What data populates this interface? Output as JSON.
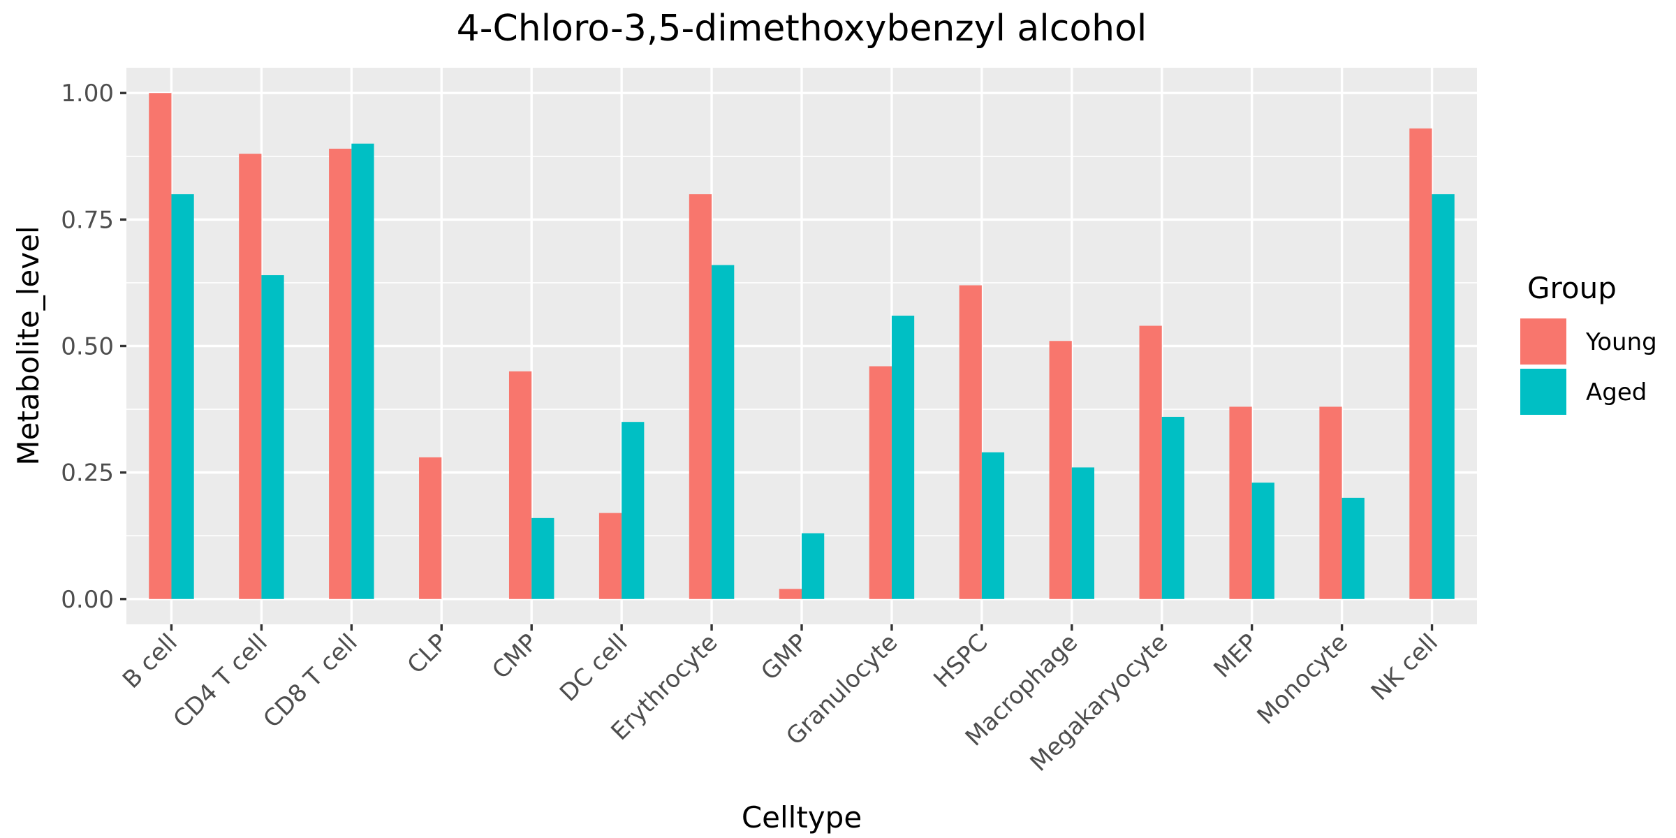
{
  "chart_data": {
    "type": "bar",
    "title": "4-Chloro-3,5-dimethoxybenzyl alcohol",
    "xlabel": "Celltype",
    "ylabel": "Metabolite_level",
    "categories": [
      "B cell",
      "CD4 T cell",
      "CD8 T cell",
      "CLP",
      "CMP",
      "DC cell",
      "Erythrocyte",
      "GMP",
      "Granulocyte",
      "HSPC",
      "Macrophage",
      "Megakaryocyte",
      "MEP",
      "Monocyte",
      "NK cell"
    ],
    "series": [
      {
        "name": "Young",
        "color": "#F8766D",
        "values": [
          1.0,
          0.88,
          0.89,
          0.28,
          0.45,
          0.17,
          0.8,
          0.02,
          0.46,
          0.62,
          0.51,
          0.54,
          0.38,
          0.38,
          0.93
        ]
      },
      {
        "name": "Aged",
        "color": "#00BFC4",
        "values": [
          0.8,
          0.64,
          0.9,
          0.0,
          0.16,
          0.35,
          0.66,
          0.13,
          0.56,
          0.29,
          0.26,
          0.36,
          0.23,
          0.2,
          0.8
        ]
      }
    ],
    "ylim": [
      -0.05,
      1.05
    ],
    "yticks": [
      0.0,
      0.25,
      0.5,
      0.75,
      1.0
    ],
    "ytick_labels": [
      "0.00",
      "0.25",
      "0.50",
      "0.75",
      "1.00"
    ],
    "grid": true,
    "legend": {
      "title": "Group",
      "position": "right"
    }
  }
}
